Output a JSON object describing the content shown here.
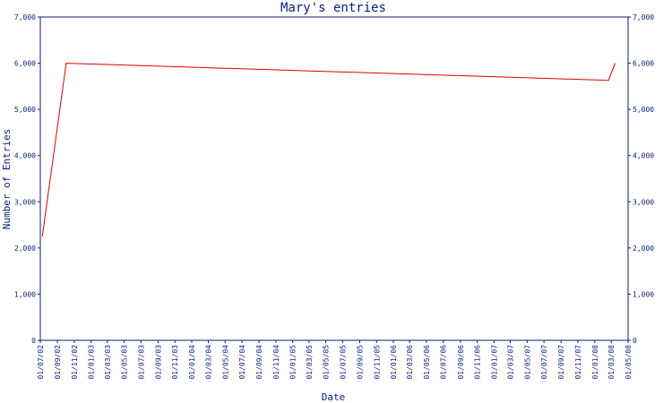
{
  "chart_data": {
    "type": "line",
    "title": "Mary's entries",
    "xlabel": "Date",
    "ylabel": "Number of Entries",
    "ylim": [
      0,
      7000
    ],
    "y_ticks": [
      "0",
      "1,000",
      "2,000",
      "3,000",
      "4,000",
      "5,000",
      "6,000",
      "7,000"
    ],
    "x_ticks": [
      "01/07/02",
      "01/09/02",
      "01/11/02",
      "01/01/03",
      "01/03/03",
      "01/05/03",
      "01/07/03",
      "01/09/03",
      "01/11/03",
      "01/01/04",
      "01/03/04",
      "01/05/04",
      "01/07/04",
      "01/09/04",
      "01/11/04",
      "01/01/05",
      "01/03/05",
      "01/05/05",
      "01/07/05",
      "01/09/05",
      "01/11/05",
      "01/01/06",
      "01/03/06",
      "01/05/06",
      "01/07/06",
      "01/09/06",
      "01/11/06",
      "01/01/07",
      "01/03/07",
      "01/05/07",
      "01/07/07",
      "01/09/07",
      "01/11/07",
      "01/01/08",
      "01/03/08",
      "01/05/08"
    ],
    "series": [
      {
        "color": "#dd0000",
        "x": [
          "2002-07-08",
          "2002-10-03",
          "2008-02-20",
          "2008-03-15"
        ],
        "values": [
          2250,
          6000,
          5630,
          6000
        ]
      }
    ],
    "grid": false,
    "right_axis": true
  }
}
